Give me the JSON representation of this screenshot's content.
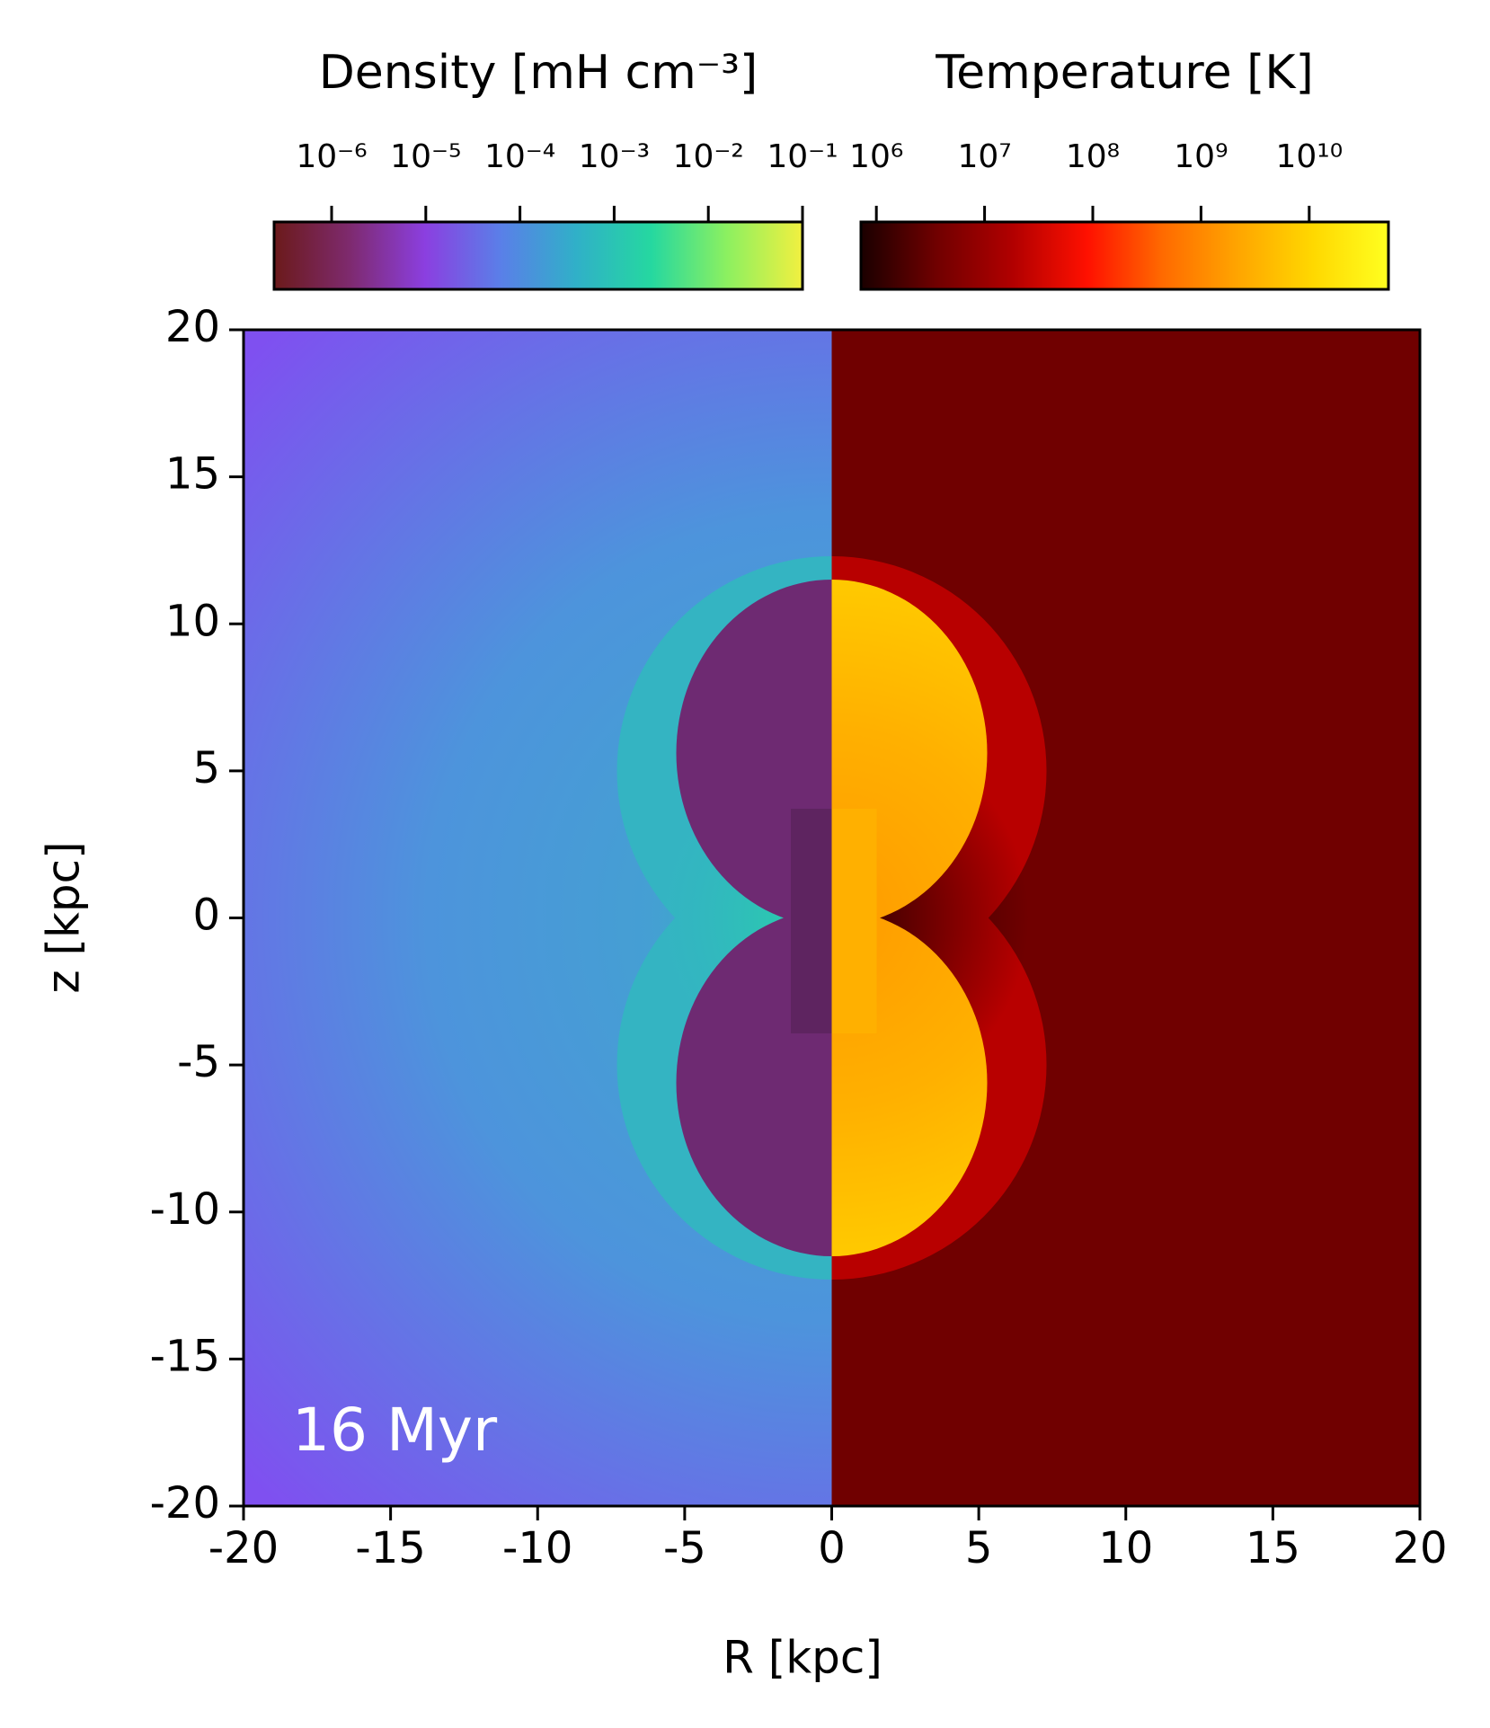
{
  "chart_data": {
    "type": "heatmap",
    "xlabel": "R [kpc]",
    "ylabel": "z [kpc]",
    "xlim": [
      -20,
      20
    ],
    "ylim": [
      -20,
      20
    ],
    "xticks": [
      -20,
      -15,
      -10,
      -5,
      0,
      5,
      10,
      15,
      20
    ],
    "yticks": [
      -20,
      -15,
      -10,
      -5,
      0,
      5,
      10,
      15,
      20
    ],
    "annotation": "16 Myr",
    "colorbars": [
      {
        "label": "Density [mH cm⁻³]",
        "scale": "log",
        "lim": [
          2.45e-07,
          0.1
        ],
        "ticks": [
          {
            "value": 1e-06,
            "label": "10⁻⁶"
          },
          {
            "value": 1e-05,
            "label": "10⁻⁵"
          },
          {
            "value": 0.0001,
            "label": "10⁻⁴"
          },
          {
            "value": 0.001,
            "label": "10⁻³"
          },
          {
            "value": 0.01,
            "label": "10⁻²"
          },
          {
            "value": 0.1,
            "label": "10⁻¹"
          }
        ],
        "colors": [
          "#6b1a1a",
          "#7e2a6e",
          "#8b3fe0",
          "#5a7fe8",
          "#30b0c8",
          "#25d8a0",
          "#8cf060",
          "#f2f040"
        ]
      },
      {
        "label": "Temperature [K]",
        "scale": "log",
        "lim": [
          720000,
          54000000000
        ],
        "ticks": [
          {
            "value": 1000000,
            "label": "10⁶"
          },
          {
            "value": 10000000,
            "label": "10⁷"
          },
          {
            "value": 100000000,
            "label": "10⁸"
          },
          {
            "value": 1000000000,
            "label": "10⁹"
          },
          {
            "value": 10000000000,
            "label": "10¹⁰"
          }
        ],
        "colors": [
          "#1a0000",
          "#700000",
          "#b00000",
          "#ff1000",
          "#ff6a00",
          "#ffa500",
          "#ffd800",
          "#ffff20"
        ]
      }
    ]
  }
}
